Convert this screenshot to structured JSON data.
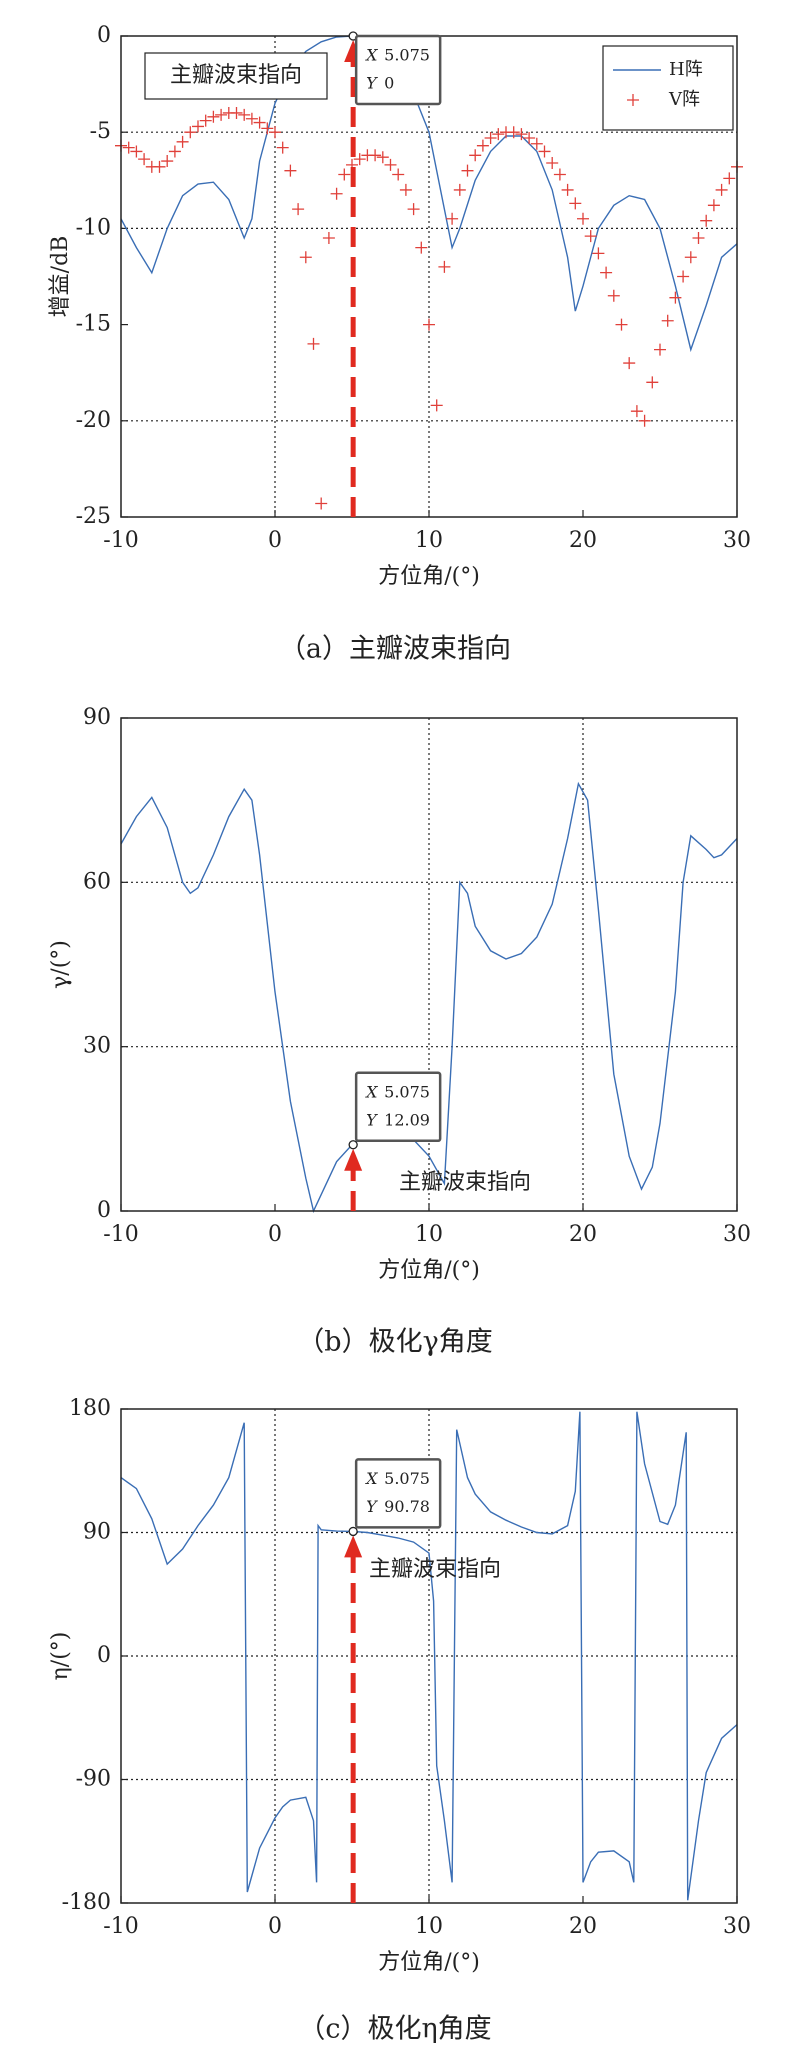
{
  "chart_data": [
    {
      "type": "line",
      "caption": "（a）主瓣波束指向",
      "xlabel": "方位角/(°)",
      "ylabel": "增益/dB",
      "xlim": [
        -10,
        30
      ],
      "xticks": [
        -10,
        0,
        10,
        20,
        30
      ],
      "ylim": [
        -25,
        0
      ],
      "yticks": [
        -25,
        -20,
        -15,
        -10,
        -5,
        0
      ],
      "xgrid": [
        0,
        10
      ],
      "ygrid": [
        -5,
        -10,
        -20
      ],
      "legend": "upper right",
      "annotation": "主瓣波束指向",
      "annotation_style": "box",
      "datatip": {
        "x_label": "X",
        "x": 5.075,
        "y_label": "Y",
        "y": 0
      },
      "series": [
        {
          "name": "H阵",
          "color": "#3a6eb5",
          "marker": "none",
          "x": [
            -10,
            -9,
            -8,
            -7,
            -6,
            -5,
            -4,
            -3,
            -2,
            -1.5,
            -1,
            0,
            1,
            2,
            3,
            4,
            5,
            6,
            7,
            8,
            9,
            10,
            11,
            11.5,
            12,
            13,
            14,
            15,
            16,
            17,
            18,
            19,
            19.5,
            20,
            21,
            22,
            23,
            24,
            25,
            26,
            27,
            28,
            29,
            30
          ],
          "values": [
            -9.5,
            -11,
            -12.3,
            -10,
            -8.3,
            -7.7,
            -7.6,
            -8.5,
            -10.5,
            -9.5,
            -6.5,
            -3.5,
            -1.8,
            -0.8,
            -0.3,
            -0.05,
            0,
            -0.2,
            -0.8,
            -1.8,
            -3,
            -5,
            -9,
            -11,
            -10,
            -7.5,
            -6,
            -5.2,
            -5.2,
            -6,
            -8,
            -11.5,
            -14.3,
            -13,
            -10,
            -8.8,
            -8.3,
            -8.5,
            -10,
            -13,
            -16.3,
            -14,
            -11.5,
            -10.8
          ]
        },
        {
          "name": "V阵",
          "color": "#e0403a",
          "marker": "+",
          "x": [
            -10,
            -9.5,
            -9,
            -8.5,
            -8,
            -7.5,
            -7,
            -6.5,
            -6,
            -5.5,
            -5,
            -4.5,
            -4,
            -3.5,
            -3,
            -2.5,
            -2,
            -1.5,
            -1,
            -0.5,
            0,
            0.5,
            1,
            1.5,
            2,
            2.5,
            3,
            3.5,
            4,
            4.5,
            5,
            5.5,
            6,
            6.5,
            7,
            7.5,
            8,
            8.5,
            9,
            9.5,
            10,
            10.5,
            11,
            11.5,
            12,
            12.5,
            13,
            13.5,
            14,
            14.5,
            15,
            15.5,
            16,
            16.5,
            17,
            17.5,
            18,
            18.5,
            19,
            19.5,
            20,
            20.5,
            21,
            21.5,
            22,
            22.5,
            23,
            23.5,
            24,
            24.5,
            25,
            25.5,
            26,
            26.5,
            27,
            27.5,
            28,
            28.5,
            29,
            29.5,
            30
          ],
          "values": [
            -5.7,
            -5.8,
            -6.0,
            -6.4,
            -6.8,
            -6.8,
            -6.5,
            -6.0,
            -5.5,
            -5.0,
            -4.7,
            -4.4,
            -4.2,
            -4.1,
            -4.0,
            -4.0,
            -4.1,
            -4.3,
            -4.5,
            -4.8,
            -5.0,
            -5.8,
            -7.0,
            -9.0,
            -11.5,
            -16.0,
            -24.3,
            -10.5,
            -8.2,
            -7.2,
            -6.7,
            -6.4,
            -6.2,
            -6.2,
            -6.3,
            -6.7,
            -7.2,
            -8.0,
            -9.0,
            -11.0,
            -15.0,
            -19.2,
            -12.0,
            -9.5,
            -8.0,
            -7.0,
            -6.2,
            -5.7,
            -5.3,
            -5.1,
            -5.0,
            -5.0,
            -5.1,
            -5.3,
            -5.6,
            -6.0,
            -6.6,
            -7.2,
            -8.0,
            -8.7,
            -9.5,
            -10.4,
            -11.3,
            -12.3,
            -13.5,
            -15.0,
            -17.0,
            -19.5,
            -20.0,
            -18.0,
            -16.3,
            -14.8,
            -13.6,
            -12.5,
            -11.5,
            -10.5,
            -9.6,
            -8.8,
            -8.0,
            -7.4,
            -6.8
          ]
        }
      ]
    },
    {
      "type": "line",
      "caption": "（b）极化γ角度",
      "xlabel": "方位角/(°)",
      "ylabel": "γ/(°)",
      "xlim": [
        -10,
        30
      ],
      "xticks": [
        -10,
        0,
        10,
        20,
        30
      ],
      "ylim": [
        0,
        90
      ],
      "yticks": [
        0,
        30,
        60,
        90
      ],
      "xgrid": [
        10,
        20
      ],
      "ygrid": [
        30,
        60
      ],
      "annotation": "主瓣波束指向",
      "annotation_style": "plain",
      "datatip": {
        "x_label": "X",
        "x": 5.075,
        "y_label": "Y",
        "y": 12.09
      },
      "series": [
        {
          "color": "#3a6eb5",
          "marker": "none",
          "x": [
            -10,
            -9,
            -8,
            -7,
            -6,
            -5.5,
            -5,
            -4,
            -3,
            -2,
            -1.5,
            -1,
            0,
            1,
            2,
            2.5,
            3,
            4,
            5,
            6,
            7,
            8,
            9,
            10,
            11,
            11.5,
            12,
            12.5,
            13,
            14,
            15,
            16,
            17,
            18,
            19,
            19.7,
            20.3,
            21,
            22,
            23,
            23.8,
            24.5,
            25,
            26,
            26.5,
            27,
            28,
            28.5,
            29,
            30
          ],
          "values": [
            67,
            72,
            75.5,
            70,
            60,
            58,
            59,
            65,
            72,
            77,
            75,
            65,
            40,
            20,
            6,
            0,
            3,
            9,
            12.09,
            14,
            15,
            14.5,
            13,
            10,
            5,
            30,
            60,
            58,
            52,
            47.5,
            46,
            47,
            50,
            56,
            68,
            78,
            75,
            55,
            25,
            10,
            4,
            8,
            16,
            40,
            60,
            68.5,
            66,
            64.5,
            65,
            68
          ]
        }
      ]
    },
    {
      "type": "line",
      "caption": "（c）极化η角度",
      "xlabel": "方位角/(°)",
      "ylabel": "η/(°)",
      "xlim": [
        -10,
        30
      ],
      "xticks": [
        -10,
        0,
        10,
        20,
        30
      ],
      "ylim": [
        -180,
        180
      ],
      "yticks": [
        -180,
        -90,
        0,
        90,
        180
      ],
      "xgrid": [
        0,
        10
      ],
      "ygrid": [
        -90,
        0,
        90
      ],
      "annotation": "主瓣波束指向",
      "annotation_style": "plain",
      "datatip": {
        "x_label": "X",
        "x": 5.075,
        "y_label": "Y",
        "y": 90.78
      },
      "series": [
        {
          "color": "#3a6eb5",
          "marker": "none",
          "x": [
            -10,
            -9,
            -8,
            -7,
            -6,
            -5,
            -4,
            -3,
            -2,
            -1.8,
            -1,
            0,
            0.5,
            1,
            2,
            2.5,
            2.7,
            2.8,
            3,
            4,
            5.075,
            6,
            7,
            8,
            9,
            10,
            10.3,
            10.5,
            11,
            11.5,
            11.8,
            12.5,
            13,
            14,
            15,
            16,
            17,
            18,
            19,
            19.5,
            19.8,
            20,
            20.5,
            21,
            22,
            23,
            23.3,
            23.5,
            24,
            25,
            25.5,
            26,
            26.7,
            26.8,
            27.5,
            28,
            29,
            30
          ],
          "values": [
            130,
            122,
            100,
            67,
            78,
            95,
            110,
            130,
            170,
            -172,
            -140,
            -118,
            -110,
            -105,
            -103,
            -120,
            -165,
            95,
            92,
            91,
            90.78,
            90,
            88,
            86,
            83,
            75,
            40,
            -80,
            -120,
            -165,
            165,
            130,
            118,
            105,
            99,
            94,
            90,
            89,
            95,
            120,
            178,
            -165,
            -150,
            -143,
            -142,
            -150,
            -165,
            178,
            140,
            98,
            96,
            110,
            163,
            -178,
            -120,
            -85,
            -60,
            -50
          ]
        }
      ]
    }
  ]
}
